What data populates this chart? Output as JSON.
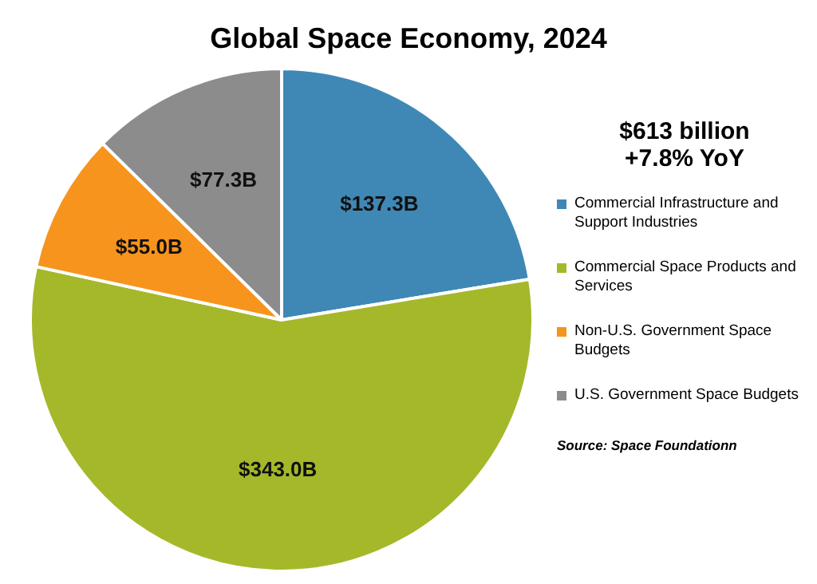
{
  "chart_data": {
    "type": "pie",
    "title": "Global Space Economy, 2024",
    "legend_title": "$613 billion\n+7.8% YoY",
    "categories": [
      "Commercial Infrastructure and Support Industries",
      "Commercial Space Products and Services",
      "Non-U.S. Government Space Budgets",
      "U.S. Government Space Budgets"
    ],
    "values": [
      137.3,
      343.0,
      55.0,
      77.3
    ],
    "colors": [
      "#3f88b5",
      "#a5b82a",
      "#f7941d",
      "#8c8c8c"
    ],
    "value_labels": [
      "$137.3B",
      "$343.0B",
      "$55.0B",
      "$77.3B"
    ],
    "legend": "right",
    "annotations": [
      "Source: Space Foundationn"
    ]
  }
}
